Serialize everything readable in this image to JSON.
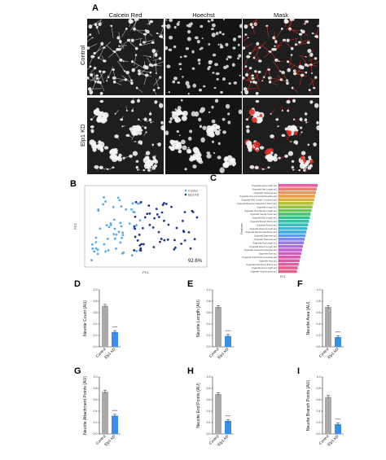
{
  "panels": {
    "A": "A",
    "B": "B",
    "C": "C",
    "D": "D",
    "E": "E",
    "F": "F",
    "G": "G",
    "H": "H",
    "I": "I"
  },
  "panel_a": {
    "columns": [
      "Calcein Red",
      "Hoechst",
      "Mask"
    ],
    "rows": [
      "Control",
      "Elp1 KD"
    ]
  },
  "panel_b": {
    "xlabel": "PC1",
    "ylabel": "PC2",
    "legend": [
      "Control",
      "Elp1 KD"
    ],
    "accuracy": "92.6%",
    "colors": {
      "control": "#5aa9e6",
      "kd": "#1f3a8a"
    }
  },
  "panel_c": {
    "xlabel": "PC1",
    "ylabel": "Features",
    "features": [
      "Organelle Area Length av2",
      "Organelle Max Length av2",
      "Organelle Total Area av2",
      "Organelle Area Connected Neurites av2",
      "Organelle Max Length Connected av2",
      "Organelle Branches Attachment Points av2",
      "Organelle Length av2",
      "Organelle Total Neurite Length av2",
      "Organelle Neurite Count av2",
      "Organelle Max Length av2",
      "Organelle Branch Points av2",
      "Organelle Extend av2",
      "Organelle Extend Length av2",
      "Organelle Neurite Attachment av2",
      "Organelle Branches av2",
      "Organelle Total Area av2",
      "Organelle Avg Length av2",
      "Organelle Branch Length av2",
      "Organelle Connecting Neurites av2",
      "Organelle Area av2",
      "Organelle Total Points Area Ends av2",
      "Organelle Area av2",
      "Organelle Attachment Points av2",
      "Organelle Area Length av2",
      "Organelle Total Neurites av2"
    ]
  },
  "bar_charts": [
    {
      "panel": "D",
      "ylabel": "Neurite Count (AU)",
      "categories": [
        "Control",
        "Elp1 KD"
      ],
      "values": [
        0.72,
        0.26
      ],
      "ylim": [
        0,
        1.0
      ],
      "ticks": [
        "0.0",
        "0.2",
        "0.4",
        "0.6",
        "0.8",
        "1.0"
      ],
      "sig": "****"
    },
    {
      "panel": "E",
      "ylabel": "Neurite Length (AU)",
      "categories": [
        "Control",
        "Elp1 KD"
      ],
      "values": [
        0.7,
        0.19
      ],
      "ylim": [
        0,
        1.0
      ],
      "ticks": [
        "0.0",
        "0.2",
        "0.4",
        "0.6",
        "0.8",
        "1.0"
      ],
      "sig": "****"
    },
    {
      "panel": "F",
      "ylabel": "Neurite Area (AU)",
      "categories": [
        "Control",
        "Elp1 KD"
      ],
      "values": [
        0.7,
        0.17
      ],
      "ylim": [
        0,
        1.0
      ],
      "ticks": [
        "0.0",
        "0.2",
        "0.4",
        "0.6",
        "0.8",
        "1.0"
      ],
      "sig": "****"
    },
    {
      "panel": "G",
      "ylabel": "Neurite Attachment Points (AU)",
      "categories": [
        "Control",
        "Elp1 KD"
      ],
      "values": [
        0.74,
        0.32
      ],
      "ylim": [
        0,
        1.0
      ],
      "ticks": [
        "0.0",
        "0.2",
        "0.4",
        "0.6",
        "0.8",
        "1.0"
      ],
      "sig": "****"
    },
    {
      "panel": "H",
      "ylabel": "Neurite End Points (AU)",
      "categories": [
        "Control",
        "Elp1 KD"
      ],
      "values": [
        0.7,
        0.23
      ],
      "ylim": [
        0,
        1.0
      ],
      "ticks": [
        "0.0",
        "0.2",
        "0.4",
        "0.6",
        "0.8",
        "1.0"
      ],
      "sig": "****"
    },
    {
      "panel": "I",
      "ylabel": "Neurite Branch Points (AU)",
      "categories": [
        "Control",
        "Elp1 KD"
      ],
      "values": [
        0.65,
        0.17
      ],
      "ylim": [
        0,
        1.0
      ],
      "ticks": [
        "0.0",
        "0.2",
        "0.4",
        "0.6",
        "0.8",
        "1.0"
      ],
      "sig": "****"
    }
  ],
  "colors": {
    "control_bar": "#a9a9a9",
    "kd_bar": "#3a8fe0",
    "mask_red": "#d8322a"
  }
}
